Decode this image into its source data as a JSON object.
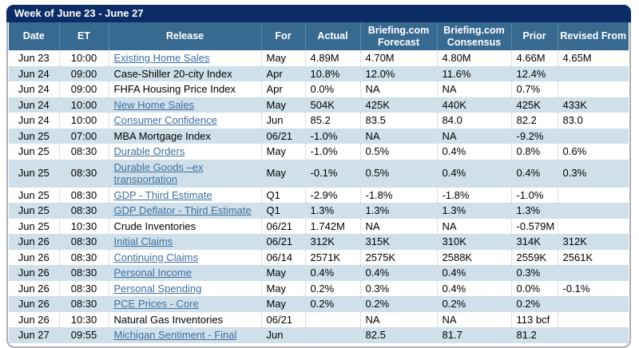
{
  "title": "Week of June 23 - June 27",
  "colors": {
    "title_bar_bg": "#0c2c66",
    "header_bg": "#386a91",
    "alt_row_bg": "#cfe0eb",
    "link": "#3d6f9e",
    "outer_border": "#b0b0b0"
  },
  "table": {
    "columns": [
      "Date",
      "ET",
      "Release",
      "For",
      "Actual",
      "Briefing.com Forecast",
      "Briefing.com Consensus",
      "Prior",
      "Revised From"
    ],
    "row_keys": [
      "date",
      "et",
      "release",
      "for",
      "actual",
      "forecast",
      "consensus",
      "prior",
      "revised"
    ],
    "rows": [
      {
        "date": "Jun 23",
        "et": "10:00",
        "release": "Existing Home Sales",
        "link": true,
        "for": "May",
        "actual": "4.89M",
        "forecast": "4.70M",
        "consensus": "4.80M",
        "prior": "4.66M",
        "revised": "4.65M"
      },
      {
        "date": "Jun 24",
        "et": "09:00",
        "release": "Case-Shiller 20-city Index",
        "link": false,
        "for": "Apr",
        "actual": "10.8%",
        "forecast": "12.0%",
        "consensus": "11.6%",
        "prior": "12.4%",
        "revised": ""
      },
      {
        "date": "Jun 24",
        "et": "09:00",
        "release": "FHFA Housing Price Index",
        "link": false,
        "for": "Apr",
        "actual": "0.0%",
        "forecast": "NA",
        "consensus": "NA",
        "prior": "0.7%",
        "revised": ""
      },
      {
        "date": "Jun 24",
        "et": "10:00",
        "release": "New Home Sales",
        "link": true,
        "for": "May",
        "actual": "504K",
        "forecast": "425K",
        "consensus": "440K",
        "prior": "425K",
        "revised": "433K"
      },
      {
        "date": "Jun 24",
        "et": "10:00",
        "release": "Consumer Confidence",
        "link": true,
        "for": "Jun",
        "actual": "85.2",
        "forecast": "83.5",
        "consensus": "84.0",
        "prior": "82.2",
        "revised": "83.0"
      },
      {
        "date": "Jun 25",
        "et": "07:00",
        "release": "MBA Mortgage Index",
        "link": false,
        "for": "06/21",
        "actual": "-1.0%",
        "forecast": "NA",
        "consensus": "NA",
        "prior": "-9.2%",
        "revised": ""
      },
      {
        "date": "Jun 25",
        "et": "08:30",
        "release": "Durable Orders",
        "link": true,
        "for": "May",
        "actual": "-1.0%",
        "forecast": "0.5%",
        "consensus": "0.4%",
        "prior": "0.8%",
        "revised": "0.6%"
      },
      {
        "date": "Jun 25",
        "et": "08:30",
        "release": "Durable Goods –ex transportation",
        "link": true,
        "for": "May",
        "actual": "-0.1%",
        "forecast": "0.5%",
        "consensus": "0.4%",
        "prior": "0.4%",
        "revised": "0.3%"
      },
      {
        "date": "Jun 25",
        "et": "08:30",
        "release": "GDP - Third Estimate",
        "link": true,
        "for": "Q1",
        "actual": "-2.9%",
        "forecast": "-1.8%",
        "consensus": "-1.8%",
        "prior": "-1.0%",
        "revised": ""
      },
      {
        "date": "Jun 25",
        "et": "08:30",
        "release": "GDP Deflator - Third Estimate",
        "link": true,
        "for": "Q1",
        "actual": "1.3%",
        "forecast": "1.3%",
        "consensus": "1.3%",
        "prior": "1.3%",
        "revised": ""
      },
      {
        "date": "Jun 25",
        "et": "10:30",
        "release": "Crude Inventories",
        "link": false,
        "for": "06/21",
        "actual": "1.742M",
        "forecast": "NA",
        "consensus": "NA",
        "prior": "-0.579M",
        "revised": ""
      },
      {
        "date": "Jun 26",
        "et": "08:30",
        "release": "Initial Claims",
        "link": true,
        "for": "06/21",
        "actual": "312K",
        "forecast": "315K",
        "consensus": "310K",
        "prior": "314K",
        "revised": "312K"
      },
      {
        "date": "Jun 26",
        "et": "08:30",
        "release": "Continuing Claims",
        "link": true,
        "for": "06/14",
        "actual": "2571K",
        "forecast": "2575K",
        "consensus": "2588K",
        "prior": "2559K",
        "revised": "2561K"
      },
      {
        "date": "Jun 26",
        "et": "08:30",
        "release": "Personal Income",
        "link": true,
        "for": "May",
        "actual": "0.4%",
        "forecast": "0.4%",
        "consensus": "0.4%",
        "prior": "0.3%",
        "revised": ""
      },
      {
        "date": "Jun 26",
        "et": "08:30",
        "release": "Personal Spending",
        "link": true,
        "for": "May",
        "actual": "0.2%",
        "forecast": "0.3%",
        "consensus": "0.4%",
        "prior": "0.0%",
        "revised": "-0.1%"
      },
      {
        "date": "Jun 26",
        "et": "08:30",
        "release": "PCE Prices - Core",
        "link": true,
        "for": "May",
        "actual": "0.2%",
        "forecast": "0.2%",
        "consensus": "0.2%",
        "prior": "0.2%",
        "revised": ""
      },
      {
        "date": "Jun 26",
        "et": "10:30",
        "release": "Natural Gas Inventories",
        "link": false,
        "for": "06/21",
        "actual": "",
        "forecast": "NA",
        "consensus": "NA",
        "prior": "113 bcf",
        "revised": ""
      },
      {
        "date": "Jun 27",
        "et": "09:55",
        "release": "Michigan Sentiment - Final",
        "link": true,
        "for": "Jun",
        "actual": "",
        "forecast": "82.5",
        "consensus": "81.7",
        "prior": "81.2",
        "revised": ""
      }
    ]
  }
}
